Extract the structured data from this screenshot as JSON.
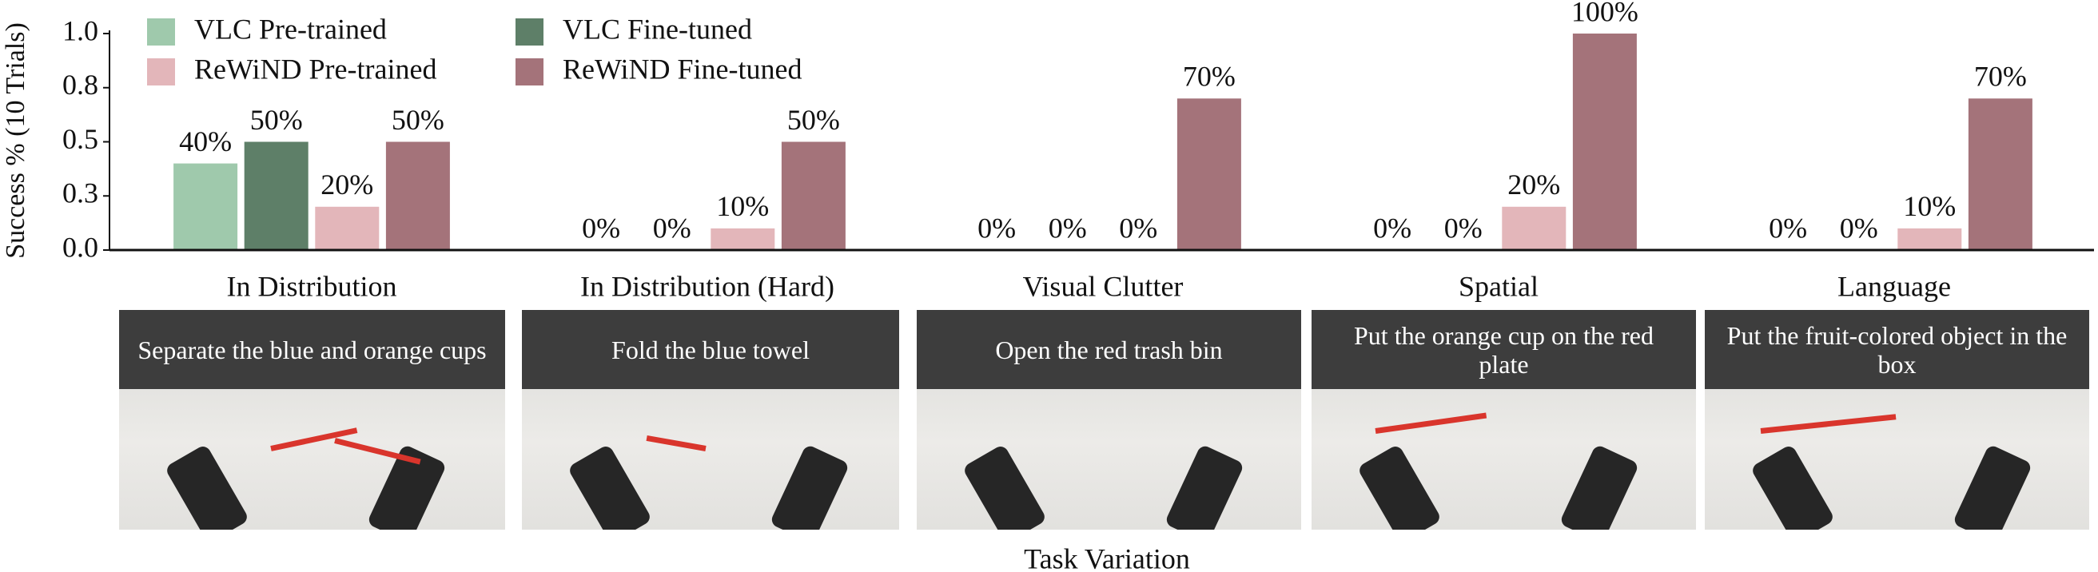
{
  "chart_data": {
    "type": "bar",
    "ylabel": "Success % (10 Trials)",
    "xlabel": "Task Variation",
    "categories": [
      "In Distribution",
      "In Distribution (Hard)",
      "Visual Clutter",
      "Spatial",
      "Language"
    ],
    "series": [
      {
        "name": "VLC Pre-trained",
        "color": "#9fc9ac",
        "values": [
          0.4,
          0,
          0,
          0,
          0
        ],
        "value_labels": [
          "40%",
          "0%",
          "0%",
          "0%",
          "0%"
        ]
      },
      {
        "name": "VLC Fine-tuned",
        "color": "#5e7f68",
        "values": [
          0.5,
          0,
          0,
          0,
          0
        ],
        "value_labels": [
          "50%",
          "0%",
          "0%",
          "0%",
          "0%"
        ]
      },
      {
        "name": "ReWiND Pre-trained",
        "color": "#e3b6ba",
        "values": [
          0.2,
          0.1,
          0,
          0.2,
          0.1
        ],
        "value_labels": [
          "20%",
          "10%",
          "0%",
          "20%",
          "10%"
        ]
      },
      {
        "name": "ReWiND Fine-tuned",
        "color": "#a4737a",
        "values": [
          0.5,
          0.5,
          0.7,
          1.0,
          0.7
        ],
        "value_labels": [
          "50%",
          "50%",
          "70%",
          "100%",
          "70%"
        ]
      }
    ],
    "ylim": [
      0,
      1
    ],
    "yticks": [
      {
        "value": 0,
        "label": "0.0"
      },
      {
        "value": 0.25,
        "label": "0.3"
      },
      {
        "value": 0.5,
        "label": "0.5"
      },
      {
        "value": 0.75,
        "label": "0.8"
      },
      {
        "value": 1,
        "label": "1.0"
      }
    ],
    "legend": "upper left"
  },
  "task_panels": [
    {
      "caption": "Separate the blue and orange cups"
    },
    {
      "caption": "Fold the blue towel"
    },
    {
      "caption": "Open the red trash bin"
    },
    {
      "caption": "Put the orange cup on the red plate"
    },
    {
      "caption": "Put the fruit-colored object in the box"
    }
  ]
}
